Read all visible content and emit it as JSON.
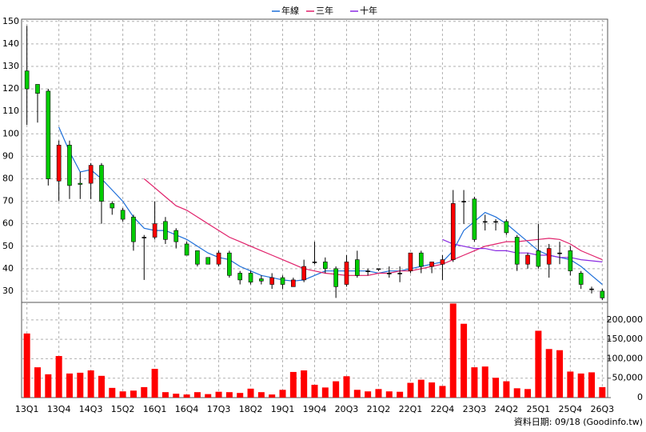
{
  "chart_data": {
    "type": "candlestick",
    "categories": [
      "13Q1",
      null,
      null,
      "13Q4",
      null,
      null,
      "14Q3",
      null,
      null,
      "15Q2",
      null,
      null,
      "16Q1",
      null,
      null,
      "16Q4",
      null,
      null,
      "17Q3",
      null,
      null,
      "18Q2",
      null,
      null,
      "19Q1",
      null,
      null,
      "19Q4",
      null,
      null,
      "20Q3",
      null,
      null,
      "21Q2",
      null,
      null,
      "22Q1",
      null,
      null,
      "22Q4",
      null,
      null,
      "23Q3",
      null,
      null,
      "24Q2",
      null,
      null,
      "25Q1",
      null,
      null,
      "25Q4",
      null,
      null,
      "26Q3"
    ],
    "open": [
      128,
      122,
      119,
      79,
      95,
      78,
      78,
      86,
      69,
      66,
      63,
      54,
      54,
      61,
      57,
      51,
      48,
      45,
      42,
      47,
      38,
      38,
      35.5,
      33,
      36,
      32,
      35,
      43,
      43,
      40,
      33,
      44,
      39,
      40,
      38,
      38,
      39,
      47,
      41,
      42,
      44,
      70,
      71,
      61,
      61,
      61,
      54,
      42,
      48,
      42,
      47,
      48,
      38,
      31,
      30
    ],
    "high": [
      148,
      122,
      120,
      97,
      97,
      83,
      87,
      87,
      70,
      67,
      64,
      55,
      70,
      63,
      58,
      52,
      48,
      45,
      48,
      48,
      39,
      39,
      37,
      38,
      37,
      36,
      44,
      52,
      45,
      41,
      46,
      48,
      40,
      40,
      41,
      41,
      47,
      48,
      43,
      46,
      75,
      75,
      72,
      64,
      62,
      62,
      55,
      47,
      60,
      51,
      52,
      50,
      39,
      32,
      31
    ],
    "low": [
      104,
      105,
      77,
      70,
      71,
      71,
      71,
      60,
      64,
      61,
      48,
      35,
      53,
      51,
      49,
      46,
      41,
      42,
      41,
      36,
      33,
      33,
      33,
      31,
      31,
      32,
      34,
      42,
      38,
      27,
      32,
      36,
      37,
      39,
      36,
      34,
      38,
      38,
      38,
      35,
      43,
      60,
      52,
      57,
      57,
      55,
      39,
      40,
      40,
      36,
      42,
      37,
      31,
      29,
      26
    ],
    "close": [
      120,
      118,
      80,
      95,
      77,
      77.5,
      86,
      70,
      67,
      62,
      52,
      54,
      60,
      53,
      52,
      46,
      42,
      42,
      47,
      37,
      35,
      34,
      34.5,
      36,
      33,
      35,
      41,
      43,
      40,
      32,
      43,
      37,
      39,
      40,
      38,
      38,
      47,
      41,
      43,
      44,
      69,
      70,
      53,
      61,
      61,
      56,
      42,
      46,
      41,
      49,
      47,
      39,
      33,
      31,
      27
    ],
    "up_color": "#ff0000",
    "down_color": "#00cc00",
    "ylim": [
      25,
      151
    ],
    "yticks": [
      30,
      40,
      50,
      60,
      70,
      80,
      90,
      100,
      110,
      120,
      130,
      140,
      150
    ],
    "series": [
      {
        "name": "年線",
        "color": "#1e6fd9",
        "values": [
          null,
          null,
          null,
          103,
          92,
          83,
          84,
          80,
          75,
          70,
          63,
          58,
          57,
          57,
          55,
          53,
          50,
          47,
          45,
          44,
          41,
          39,
          37,
          36,
          35,
          34.5,
          35,
          37,
          39,
          39,
          39,
          39,
          39,
          38,
          39,
          39,
          40,
          41,
          42,
          43,
          48,
          57,
          61,
          65,
          63,
          60,
          56,
          52,
          48,
          46,
          45,
          44,
          41,
          37,
          33
        ]
      },
      {
        "name": "三年",
        "color": "#e0206a",
        "values": [
          null,
          null,
          null,
          null,
          null,
          null,
          null,
          null,
          null,
          null,
          null,
          80,
          76,
          72,
          68,
          66,
          63,
          60,
          57,
          54,
          52,
          50,
          48,
          46,
          44,
          42,
          40,
          39,
          38,
          37.5,
          37,
          37,
          37,
          38,
          38,
          39,
          39,
          40,
          41,
          42,
          44,
          46,
          48,
          50,
          51,
          52,
          52,
          52.5,
          53,
          53.5,
          53,
          51,
          48,
          46,
          44
        ]
      },
      {
        "name": "十年",
        "color": "#8a2be2",
        "values": [
          null,
          null,
          null,
          null,
          null,
          null,
          null,
          null,
          null,
          null,
          null,
          null,
          null,
          null,
          null,
          null,
          null,
          null,
          null,
          null,
          null,
          null,
          null,
          null,
          null,
          null,
          null,
          null,
          null,
          null,
          null,
          null,
          null,
          null,
          null,
          null,
          null,
          null,
          null,
          53,
          51,
          50,
          49,
          49,
          48,
          48,
          47,
          47,
          46,
          46,
          45,
          45,
          44,
          43.5,
          43
        ]
      }
    ],
    "volume": {
      "axis": "y2",
      "color": "#ff0000",
      "values": [
        165000,
        78000,
        60000,
        107000,
        62000,
        64000,
        70000,
        56000,
        25000,
        16000,
        18000,
        27000,
        74000,
        14000,
        10000,
        8000,
        14000,
        9000,
        15000,
        14000,
        12000,
        23000,
        14000,
        8000,
        20000,
        66000,
        70000,
        33000,
        26000,
        42000,
        55000,
        20000,
        16000,
        22000,
        16000,
        15000,
        38000,
        46000,
        39000,
        30000,
        242000,
        190000,
        78000,
        80000,
        51000,
        42000,
        24000,
        22000,
        172000,
        125000,
        122000,
        67000,
        62000,
        65000,
        27000
      ]
    },
    "y2lim": [
      0,
      245000
    ],
    "y2ticks": [
      0,
      {
        "value": 50000,
        "label": "50,000"
      },
      {
        "value": 100000,
        "label": "100,000"
      },
      {
        "value": 150000,
        "label": "150,000"
      },
      {
        "value": 200000,
        "label": "200,000"
      }
    ],
    "grid": true,
    "note": "資料日期: 09/18 (Goodinfo.tw)"
  }
}
